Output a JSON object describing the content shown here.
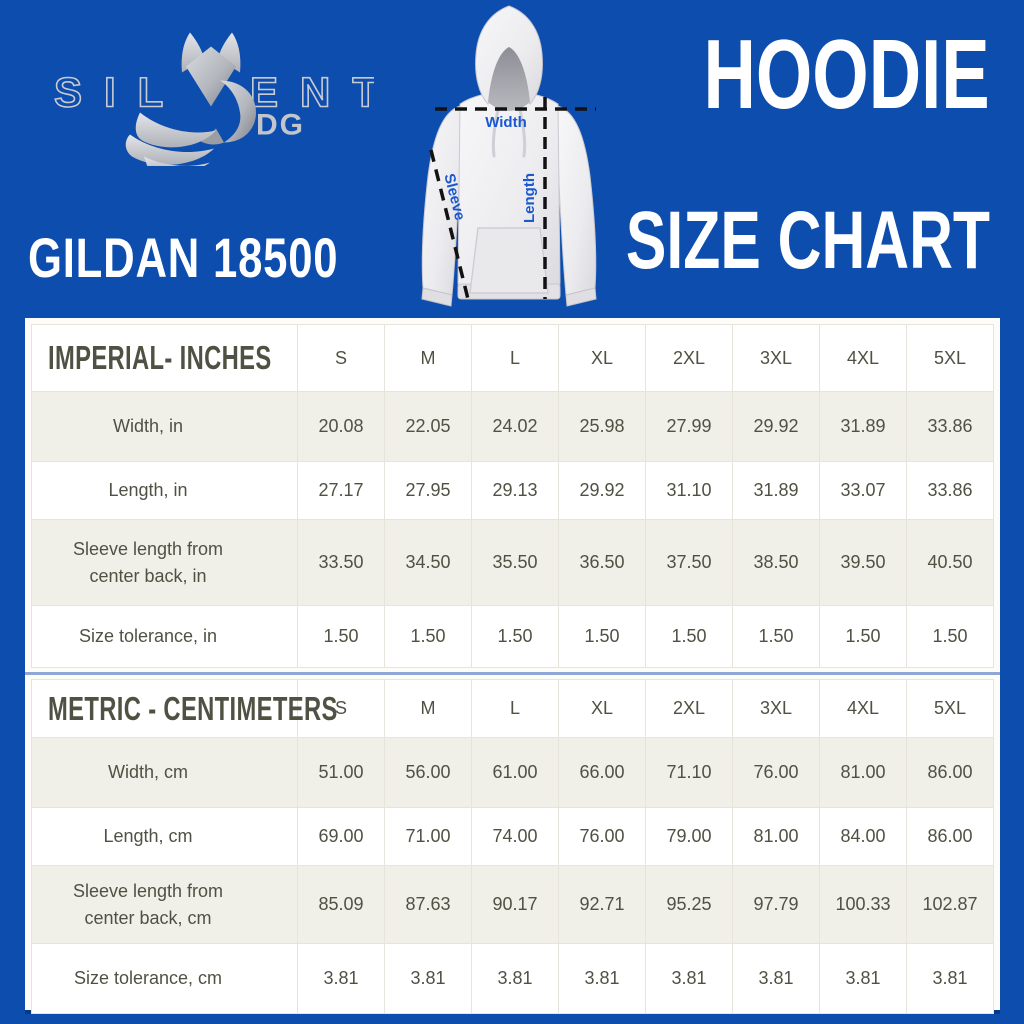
{
  "brand": {
    "name_left": "SIL",
    "name_right": "ENT",
    "sub": "DG"
  },
  "header": {
    "product_model": "GILDAN 18500",
    "title_line1": "HOODIE",
    "title_line2": "SIZE CHART"
  },
  "diagram": {
    "width_label": "Width",
    "sleeve_label": "Sleeve",
    "length_label": "Length"
  },
  "colors": {
    "background_blue": "#0C4DAE",
    "measure_label_blue": "#1B58CF",
    "logo_silver": "#C6C9CF",
    "panel_white": "#FDFCF8",
    "row_stripe": "#F0EFE8",
    "table_text": "#4F5243",
    "divider_blue": "#8FA7D4"
  },
  "tables": {
    "imperial": {
      "title": "IMPERIAL- INCHES",
      "sizes": [
        "S",
        "M",
        "L",
        "XL",
        "2XL",
        "3XL",
        "4XL",
        "5XL"
      ],
      "rows": [
        {
          "label": "Width, in",
          "values": [
            "20.08",
            "22.05",
            "24.02",
            "25.98",
            "27.99",
            "29.92",
            "31.89",
            "33.86"
          ]
        },
        {
          "label": "Length, in",
          "values": [
            "27.17",
            "27.95",
            "29.13",
            "29.92",
            "31.10",
            "31.89",
            "33.07",
            "33.86"
          ]
        },
        {
          "label": "Sleeve length from center back, in",
          "values": [
            "33.50",
            "34.50",
            "35.50",
            "36.50",
            "37.50",
            "38.50",
            "39.50",
            "40.50"
          ]
        },
        {
          "label": "Size tolerance, in",
          "values": [
            "1.50",
            "1.50",
            "1.50",
            "1.50",
            "1.50",
            "1.50",
            "1.50",
            "1.50"
          ]
        }
      ]
    },
    "metric": {
      "title": "METRIC - CENTIMETERS",
      "sizes": [
        "S",
        "M",
        "L",
        "XL",
        "2XL",
        "3XL",
        "4XL",
        "5XL"
      ],
      "rows": [
        {
          "label": "Width, cm",
          "values": [
            "51.00",
            "56.00",
            "61.00",
            "66.00",
            "71.10",
            "76.00",
            "81.00",
            "86.00"
          ]
        },
        {
          "label": "Length, cm",
          "values": [
            "69.00",
            "71.00",
            "74.00",
            "76.00",
            "79.00",
            "81.00",
            "84.00",
            "86.00"
          ]
        },
        {
          "label": "Sleeve length from center back, cm",
          "values": [
            "85.09",
            "87.63",
            "90.17",
            "92.71",
            "95.25",
            "97.79",
            "100.33",
            "102.87"
          ]
        },
        {
          "label": "Size tolerance, cm",
          "values": [
            "3.81",
            "3.81",
            "3.81",
            "3.81",
            "3.81",
            "3.81",
            "3.81",
            "3.81"
          ]
        }
      ]
    }
  }
}
